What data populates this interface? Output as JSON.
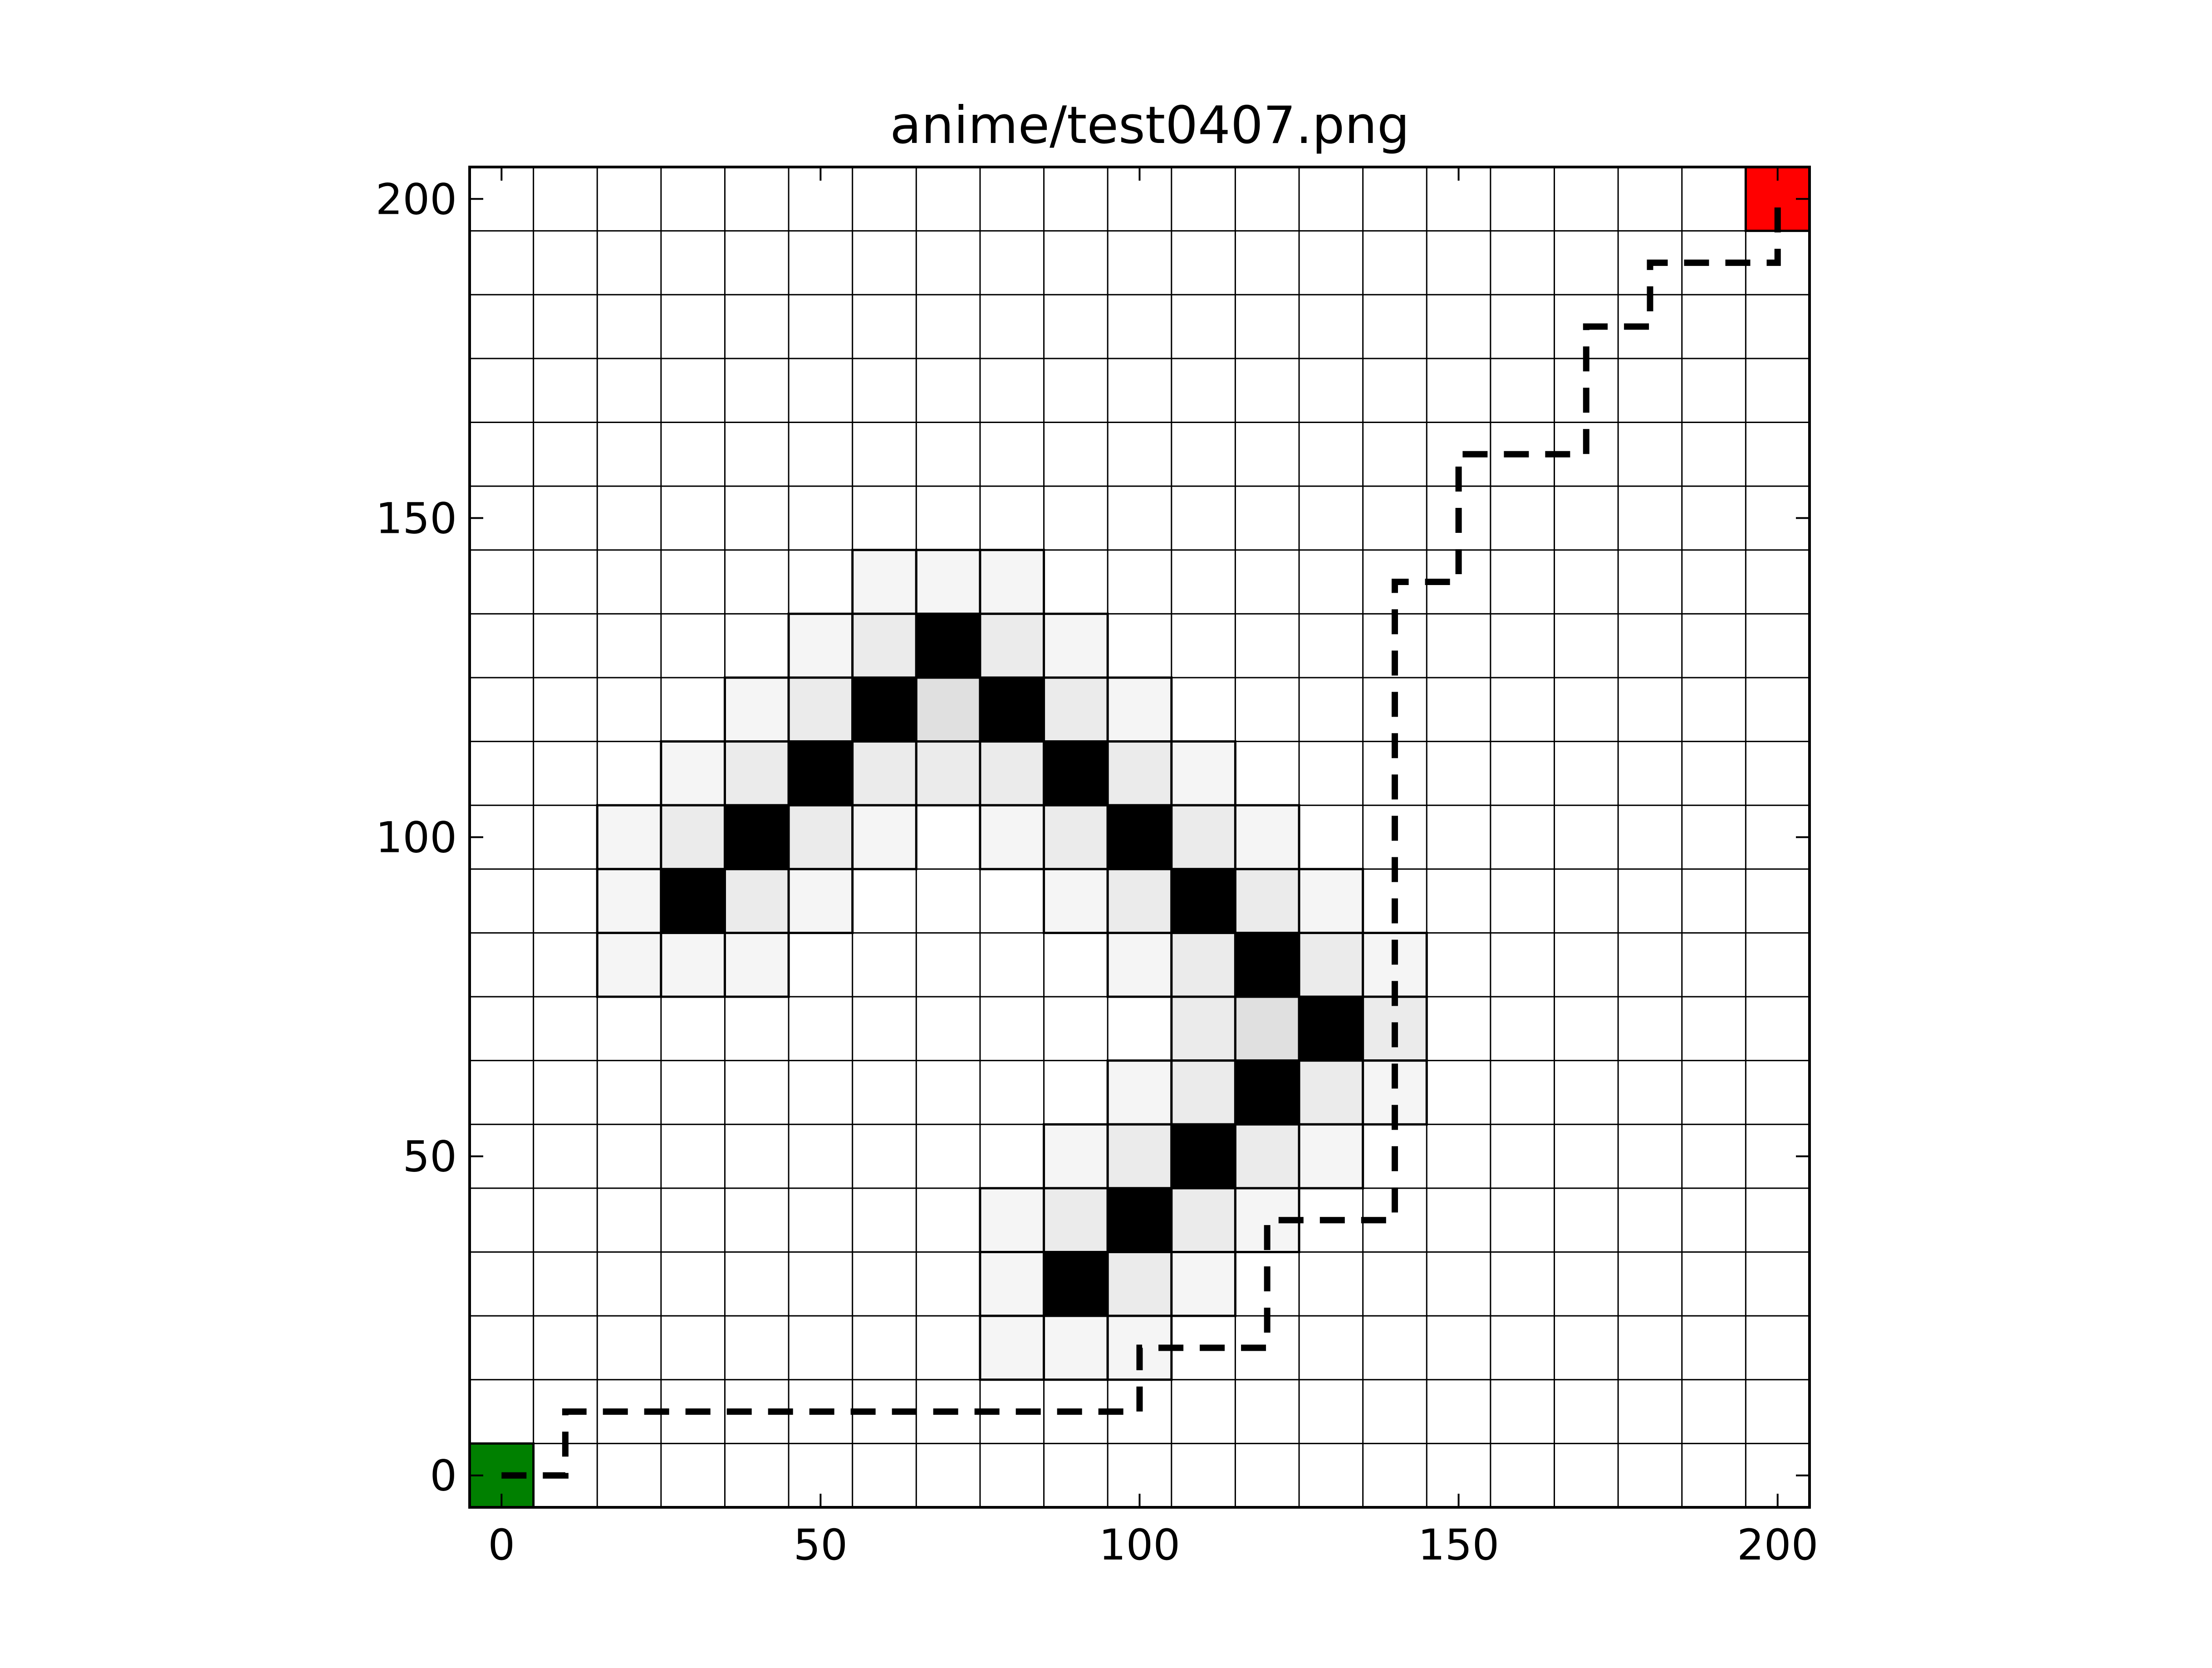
{
  "chart_data": {
    "type": "heatmap",
    "title": "anime/test0407.png",
    "xlabel": "",
    "ylabel": "",
    "xlim": [
      -5,
      205
    ],
    "ylim": [
      -5,
      205
    ],
    "cell_size": 10,
    "x_ticks": [
      0,
      50,
      100,
      150,
      200
    ],
    "y_ticks": [
      0,
      50,
      100,
      150,
      200
    ],
    "grid": true,
    "start": {
      "x": 0,
      "y": 0,
      "color": "#008000"
    },
    "goal": {
      "x": 200,
      "y": 200,
      "color": "#ff0000"
    },
    "cells": [
      {
        "x": 60,
        "y": 140,
        "v": 0.04
      },
      {
        "x": 70,
        "y": 140,
        "v": 0.04
      },
      {
        "x": 80,
        "y": 140,
        "v": 0.04
      },
      {
        "x": 50,
        "y": 130,
        "v": 0.04
      },
      {
        "x": 60,
        "y": 130,
        "v": 0.08
      },
      {
        "x": 70,
        "y": 130,
        "v": 1.0
      },
      {
        "x": 80,
        "y": 130,
        "v": 0.08
      },
      {
        "x": 90,
        "y": 130,
        "v": 0.04
      },
      {
        "x": 40,
        "y": 120,
        "v": 0.04
      },
      {
        "x": 50,
        "y": 120,
        "v": 0.08
      },
      {
        "x": 60,
        "y": 120,
        "v": 1.0
      },
      {
        "x": 70,
        "y": 120,
        "v": 0.12
      },
      {
        "x": 80,
        "y": 120,
        "v": 1.0
      },
      {
        "x": 90,
        "y": 120,
        "v": 0.08
      },
      {
        "x": 100,
        "y": 120,
        "v": 0.04
      },
      {
        "x": 30,
        "y": 110,
        "v": 0.04
      },
      {
        "x": 40,
        "y": 110,
        "v": 0.08
      },
      {
        "x": 50,
        "y": 110,
        "v": 1.0
      },
      {
        "x": 60,
        "y": 110,
        "v": 0.08
      },
      {
        "x": 70,
        "y": 110,
        "v": 0.08
      },
      {
        "x": 80,
        "y": 110,
        "v": 0.08
      },
      {
        "x": 90,
        "y": 110,
        "v": 1.0
      },
      {
        "x": 100,
        "y": 110,
        "v": 0.08
      },
      {
        "x": 110,
        "y": 110,
        "v": 0.04
      },
      {
        "x": 20,
        "y": 100,
        "v": 0.04
      },
      {
        "x": 30,
        "y": 100,
        "v": 0.08
      },
      {
        "x": 40,
        "y": 100,
        "v": 1.0
      },
      {
        "x": 50,
        "y": 100,
        "v": 0.08
      },
      {
        "x": 60,
        "y": 100,
        "v": 0.04
      },
      {
        "x": 80,
        "y": 100,
        "v": 0.04
      },
      {
        "x": 90,
        "y": 100,
        "v": 0.08
      },
      {
        "x": 100,
        "y": 100,
        "v": 1.0
      },
      {
        "x": 110,
        "y": 100,
        "v": 0.08
      },
      {
        "x": 120,
        "y": 100,
        "v": 0.04
      },
      {
        "x": 20,
        "y": 90,
        "v": 0.04
      },
      {
        "x": 30,
        "y": 90,
        "v": 1.0
      },
      {
        "x": 40,
        "y": 90,
        "v": 0.08
      },
      {
        "x": 50,
        "y": 90,
        "v": 0.04
      },
      {
        "x": 90,
        "y": 90,
        "v": 0.04
      },
      {
        "x": 100,
        "y": 90,
        "v": 0.08
      },
      {
        "x": 110,
        "y": 90,
        "v": 1.0
      },
      {
        "x": 120,
        "y": 90,
        "v": 0.08
      },
      {
        "x": 130,
        "y": 90,
        "v": 0.04
      },
      {
        "x": 20,
        "y": 80,
        "v": 0.04
      },
      {
        "x": 30,
        "y": 80,
        "v": 0.04
      },
      {
        "x": 40,
        "y": 80,
        "v": 0.04
      },
      {
        "x": 100,
        "y": 80,
        "v": 0.04
      },
      {
        "x": 110,
        "y": 80,
        "v": 0.08
      },
      {
        "x": 120,
        "y": 80,
        "v": 1.0
      },
      {
        "x": 130,
        "y": 80,
        "v": 0.08
      },
      {
        "x": 140,
        "y": 80,
        "v": 0.04
      },
      {
        "x": 110,
        "y": 70,
        "v": 0.08
      },
      {
        "x": 120,
        "y": 70,
        "v": 0.12
      },
      {
        "x": 130,
        "y": 70,
        "v": 1.0
      },
      {
        "x": 140,
        "y": 70,
        "v": 0.08
      },
      {
        "x": 100,
        "y": 60,
        "v": 0.04
      },
      {
        "x": 110,
        "y": 60,
        "v": 0.08
      },
      {
        "x": 120,
        "y": 60,
        "v": 1.0
      },
      {
        "x": 130,
        "y": 60,
        "v": 0.08
      },
      {
        "x": 140,
        "y": 60,
        "v": 0.04
      },
      {
        "x": 90,
        "y": 50,
        "v": 0.04
      },
      {
        "x": 100,
        "y": 50,
        "v": 0.08
      },
      {
        "x": 110,
        "y": 50,
        "v": 1.0
      },
      {
        "x": 120,
        "y": 50,
        "v": 0.08
      },
      {
        "x": 130,
        "y": 50,
        "v": 0.04
      },
      {
        "x": 80,
        "y": 40,
        "v": 0.04
      },
      {
        "x": 90,
        "y": 40,
        "v": 0.08
      },
      {
        "x": 100,
        "y": 40,
        "v": 1.0
      },
      {
        "x": 110,
        "y": 40,
        "v": 0.08
      },
      {
        "x": 120,
        "y": 40,
        "v": 0.04
      },
      {
        "x": 80,
        "y": 30,
        "v": 0.04
      },
      {
        "x": 90,
        "y": 30,
        "v": 1.0
      },
      {
        "x": 100,
        "y": 30,
        "v": 0.08
      },
      {
        "x": 110,
        "y": 30,
        "v": 0.04
      },
      {
        "x": 80,
        "y": 20,
        "v": 0.04
      },
      {
        "x": 90,
        "y": 20,
        "v": 0.04
      },
      {
        "x": 100,
        "y": 20,
        "v": 0.04
      }
    ],
    "path": [
      [
        0,
        0
      ],
      [
        10,
        0
      ],
      [
        10,
        10
      ],
      [
        100,
        10
      ],
      [
        100,
        20
      ],
      [
        120,
        20
      ],
      [
        120,
        40
      ],
      [
        140,
        40
      ],
      [
        140,
        140
      ],
      [
        150,
        140
      ],
      [
        150,
        160
      ],
      [
        170,
        160
      ],
      [
        170,
        180
      ],
      [
        180,
        180
      ],
      [
        180,
        190
      ],
      [
        200,
        190
      ],
      [
        200,
        200
      ]
    ]
  }
}
